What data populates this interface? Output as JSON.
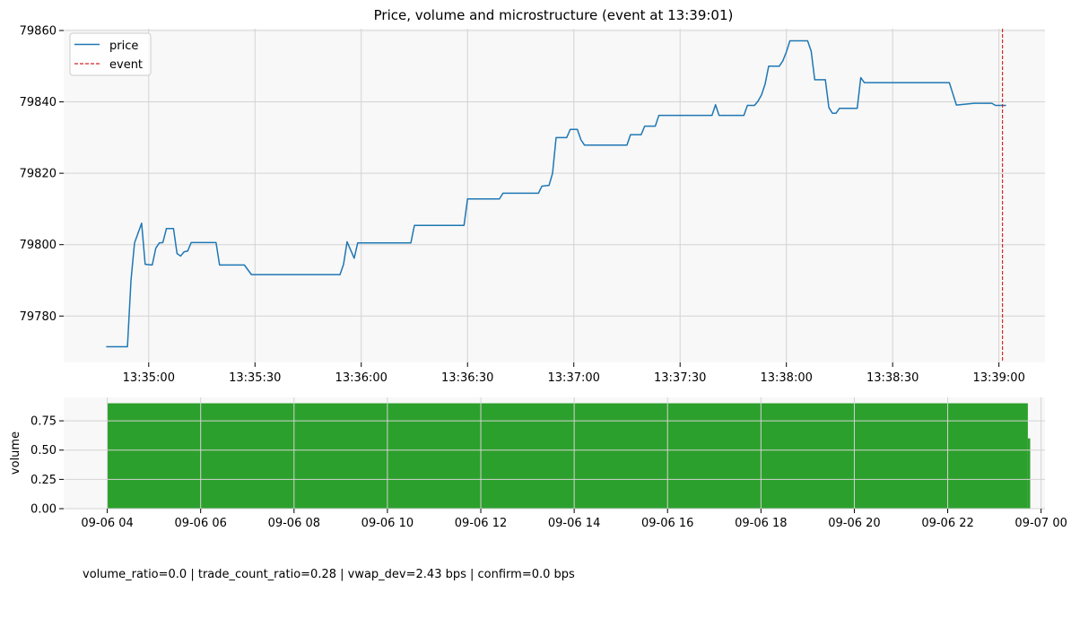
{
  "footer_text": "volume_ratio=0.0 | trade_count_ratio=0.28 | vwap_dev=2.43 bps | confirm=0.0 bps",
  "colors": {
    "price": "#1f77b4",
    "event": "#d62728",
    "volume": "#2ca02c",
    "panel_bg": "#f8f8f8",
    "grid": "#d3d3d3"
  },
  "chart_data": [
    {
      "type": "line",
      "title": "Price, volume and microstructure (event at 13:39:01)",
      "xlabel": "",
      "ylabel": "",
      "xlim": [
        "13:34:36",
        "13:39:13"
      ],
      "ylim": [
        79767,
        79860.5
      ],
      "grid": true,
      "legend_position": "upper-left",
      "x_ticks": [
        "13:35:00",
        "13:35:30",
        "13:36:00",
        "13:36:30",
        "13:37:00",
        "13:37:30",
        "13:38:00",
        "13:38:30",
        "13:39:00"
      ],
      "y_ticks": [
        79780,
        79800,
        79820,
        79840,
        79860
      ],
      "series": [
        {
          "name": "price",
          "style": "solid",
          "points": [
            [
              "13:34:48",
              79771.4
            ],
            [
              "13:34:54",
              79771.4
            ],
            [
              "13:34:55",
              79790
            ],
            [
              "13:34:56",
              79800.5
            ],
            [
              "13:34:58",
              79806
            ],
            [
              "13:34:59",
              79794.5
            ],
            [
              "13:35:01",
              79794.3
            ],
            [
              "13:35:02",
              79799
            ],
            [
              "13:35:03",
              79800.5
            ],
            [
              "13:35:04",
              79800.6
            ],
            [
              "13:35:05",
              79804.5
            ],
            [
              "13:35:07",
              79804.5
            ],
            [
              "13:35:08",
              79797.5
            ],
            [
              "13:35:09",
              79796.8
            ],
            [
              "13:35:10",
              79798
            ],
            [
              "13:35:11",
              79798.2
            ],
            [
              "13:35:12",
              79800.6
            ],
            [
              "13:35:19",
              79800.6
            ],
            [
              "13:35:20",
              79794.3
            ],
            [
              "13:35:27",
              79794.3
            ],
            [
              "13:35:29",
              79791.6
            ],
            [
              "13:35:54",
              79791.6
            ],
            [
              "13:35:55",
              79794.5
            ],
            [
              "13:35:56",
              79800.8
            ],
            [
              "13:35:58",
              79796.2
            ],
            [
              "13:35:59",
              79800.5
            ],
            [
              "13:36:14",
              79800.5
            ],
            [
              "13:36:15",
              79805.4
            ],
            [
              "13:36:29",
              79805.4
            ],
            [
              "13:36:30",
              79812.8
            ],
            [
              "13:36:39",
              79812.8
            ],
            [
              "13:36:40",
              79814.4
            ],
            [
              "13:36:50",
              79814.4
            ],
            [
              "13:36:51",
              79816.4
            ],
            [
              "13:36:53",
              79816.6
            ],
            [
              "13:36:54",
              79820
            ],
            [
              "13:36:55",
              79830
            ],
            [
              "13:36:58",
              79830
            ],
            [
              "13:36:59",
              79832.3
            ],
            [
              "13:37:01",
              79832.3
            ],
            [
              "13:37:02",
              79829.4
            ],
            [
              "13:37:03",
              79827.9
            ],
            [
              "13:37:15",
              79827.9
            ],
            [
              "13:37:16",
              79830.8
            ],
            [
              "13:37:19",
              79830.8
            ],
            [
              "13:37:20",
              79833.2
            ],
            [
              "13:37:23",
              79833.2
            ],
            [
              "13:37:24",
              79836.2
            ],
            [
              "13:37:39",
              79836.2
            ],
            [
              "13:37:40",
              79839.2
            ],
            [
              "13:37:41",
              79836.2
            ],
            [
              "13:37:48",
              79836.2
            ],
            [
              "13:37:49",
              79839
            ],
            [
              "13:37:51",
              79839
            ],
            [
              "13:37:52",
              79840.2
            ],
            [
              "13:37:53",
              79842
            ],
            [
              "13:37:54",
              79845
            ],
            [
              "13:37:55",
              79850
            ],
            [
              "13:37:58",
              79850
            ],
            [
              "13:37:59",
              79851.5
            ],
            [
              "13:38:00",
              79854
            ],
            [
              "13:38:01",
              79857.1
            ],
            [
              "13:38:06",
              79857.1
            ],
            [
              "13:38:07",
              79854.2
            ],
            [
              "13:38:08",
              79846.2
            ],
            [
              "13:38:11",
              79846.2
            ],
            [
              "13:38:12",
              79838.4
            ],
            [
              "13:38:13",
              79836.8
            ],
            [
              "13:38:14",
              79836.8
            ],
            [
              "13:38:15",
              79838.2
            ],
            [
              "13:38:20",
              79838.2
            ],
            [
              "13:38:21",
              79846.8
            ],
            [
              "13:38:22",
              79845.4
            ],
            [
              "13:38:46",
              79845.4
            ],
            [
              "13:38:48",
              79839.1
            ],
            [
              "13:38:53",
              79839.6
            ],
            [
              "13:38:58",
              79839.6
            ],
            [
              "13:38:59",
              79839
            ],
            [
              "13:39:02",
              79839
            ]
          ]
        },
        {
          "name": "event",
          "style": "dashed",
          "x": "13:39:01"
        }
      ]
    },
    {
      "type": "bar",
      "title": "",
      "xlabel": "",
      "ylabel": "volume",
      "xlim": [
        "09-06 03:04",
        "09-07 00:05"
      ],
      "ylim": [
        0,
        0.95
      ],
      "grid": true,
      "x_ticks": [
        "09-06 04",
        "09-06 06",
        "09-06 08",
        "09-06 10",
        "09-06 12",
        "09-06 14",
        "09-06 16",
        "09-06 18",
        "09-06 20",
        "09-06 22",
        "09-07 00"
      ],
      "y_ticks": [
        "0.00",
        "0.25",
        "0.50",
        "0.75"
      ],
      "series": [
        {
          "name": "volume",
          "bars": [
            {
              "start": "09-06 04:00",
              "end": "09-06 23:43",
              "value": 0.9
            },
            {
              "start": "09-06 23:43",
              "end": "09-06 23:46",
              "value": 0.6
            }
          ]
        }
      ]
    }
  ]
}
